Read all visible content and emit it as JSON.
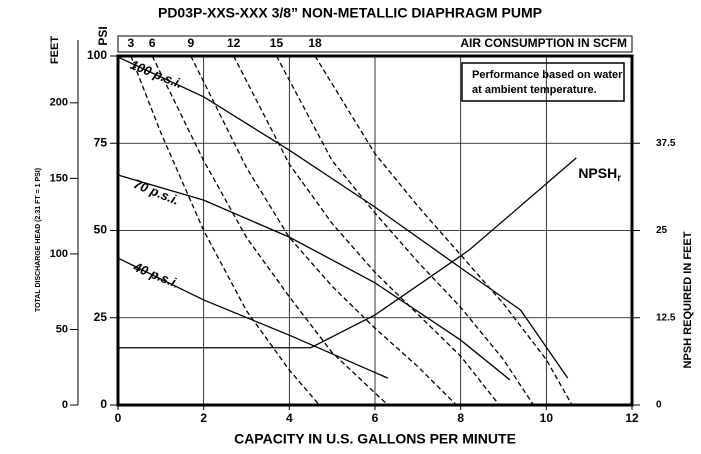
{
  "chart_data": {
    "type": "line",
    "title": "PD03P-XXS-XXX  3/8” NON-METALLIC DIAPHRAGM PUMP",
    "x_label": "CAPACITY IN U.S. GALLONS PER MINUTE",
    "y_label": "PSI",
    "feet_label": "FEET",
    "head_label": "TOTAL DISCHARGE HEAD (2.31 FT = 1 PSI)",
    "y2_label": "NPSH REQUIRED IN FEET",
    "air_label": "AIR CONSUMPTION IN SCFM",
    "note": [
      "Performance based on water",
      "at ambient temperature."
    ],
    "xlim": [
      0,
      12
    ],
    "xticks": [
      0,
      2,
      4,
      6,
      8,
      10,
      12
    ],
    "ylim": [
      0,
      100
    ],
    "yticks": [
      0,
      25,
      50,
      75,
      100
    ],
    "feet_lim": [
      0,
      231
    ],
    "feet_ticks": [
      0,
      50,
      100,
      150,
      200
    ],
    "y2lim": [
      0,
      50
    ],
    "y2ticks": [
      0,
      12.5,
      25,
      37.5
    ],
    "grid": true,
    "series": [
      {
        "name": "100 p.s.i.",
        "color": "#000",
        "x": [
          0,
          2,
          4,
          6,
          8,
          9.4,
          10.5
        ],
        "values": [
          99.7,
          88.3,
          73,
          56.7,
          39.3,
          27.2,
          7.7
        ]
      },
      {
        "name": "70 p.s.i.",
        "color": "#000",
        "x": [
          0,
          2,
          4,
          6,
          8,
          9.15
        ],
        "values": [
          65.9,
          58.7,
          48.1,
          35,
          18.6,
          7.2
        ]
      },
      {
        "name": "40 p.s.i.",
        "color": "#000",
        "x": [
          0,
          2,
          4,
          6.3
        ],
        "values": [
          42.1,
          30.1,
          20,
          7.7
        ]
      },
      {
        "name": "NPSH",
        "subscript": "r",
        "axis": "y2",
        "color": "#000",
        "x": [
          0,
          4.5,
          6,
          8.2,
          10.7
        ],
        "values": [
          8.2,
          8.2,
          12.9,
          22.2,
          35.4
        ]
      }
    ],
    "air_curves": [
      {
        "name": "3",
        "x": [
          0.3,
          1,
          2,
          3,
          4,
          4.7
        ],
        "values": [
          100,
          78,
          50,
          27,
          10,
          0
        ]
      },
      {
        "name": "6",
        "x": [
          0.8,
          2,
          3,
          4,
          5,
          6.3
        ],
        "values": [
          100,
          70,
          48,
          31,
          15,
          0
        ]
      },
      {
        "name": "9",
        "x": [
          1.7,
          3,
          4,
          5,
          6,
          7,
          7.9
        ],
        "values": [
          100,
          68,
          48,
          34,
          22,
          11,
          0
        ]
      },
      {
        "name": "12",
        "x": [
          2.7,
          4,
          5,
          6,
          7,
          8,
          8.9
        ],
        "values": [
          100,
          69,
          52,
          38,
          26,
          14,
          0
        ]
      },
      {
        "name": "15",
        "x": [
          3.7,
          5,
          6,
          7,
          8,
          9,
          9.7
        ],
        "values": [
          100,
          70,
          55,
          41,
          28,
          13,
          0
        ]
      },
      {
        "name": "18",
        "x": [
          4.6,
          6,
          7,
          8,
          9,
          10,
          10.6
        ],
        "values": [
          100,
          72,
          57,
          43,
          29,
          13,
          0
        ]
      }
    ]
  }
}
